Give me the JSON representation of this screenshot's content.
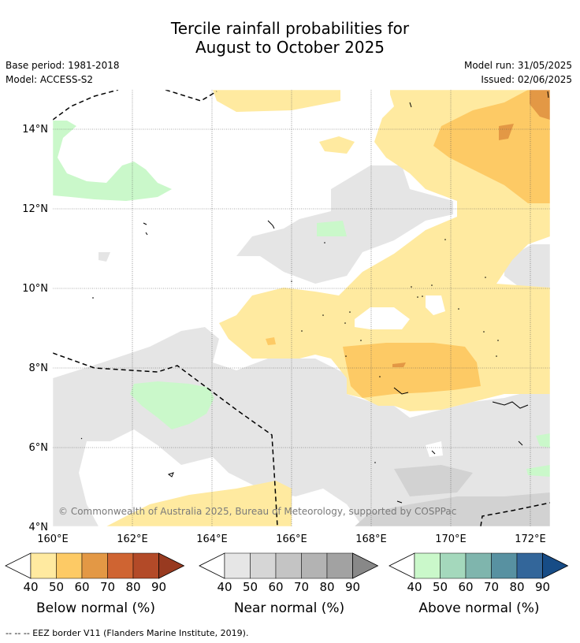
{
  "title_line1": "Tercile rainfall probabilities for",
  "title_line2": "August to October 2025",
  "base_period": "Base period: 1981-2018",
  "model": "Model: ACCESS-S2",
  "model_run": "Model run: 31/05/2025",
  "issued": "Issued: 02/06/2025",
  "credit": "© Commonwealth of Australia 2025, Bureau of Meteorology, supported by COSPPac",
  "footer": "--  --  -- EEZ border V11 (Flanders Marine Institute, 2019).",
  "map": {
    "lon_range": [
      160,
      172.5
    ],
    "lat_range": [
      4,
      15
    ],
    "lon_ticks": [
      "160°E",
      "162°E",
      "164°E",
      "166°E",
      "168°E",
      "170°E",
      "172°E"
    ],
    "lat_ticks": [
      "4°N",
      "6°N",
      "8°N",
      "10°N",
      "12°N",
      "14°N"
    ],
    "grid": true
  },
  "colorbars": [
    {
      "label": "Below normal (%)",
      "ticks": [
        "40",
        "50",
        "60",
        "70",
        "80",
        "90"
      ],
      "colors": [
        "#ffeaa0",
        "#fdca65",
        "#e39845",
        "#cf6432",
        "#b34a28",
        "#983a20"
      ]
    },
    {
      "label": "Near normal (%)",
      "ticks": [
        "40",
        "50",
        "60",
        "70",
        "80",
        "90"
      ],
      "colors": [
        "#e6e6e6",
        "#d6d6d6",
        "#c4c4c4",
        "#b3b3b3",
        "#a2a2a2",
        "#888888"
      ]
    },
    {
      "label": "Above normal (%)",
      "ticks": [
        "40",
        "50",
        "60",
        "70",
        "80",
        "90"
      ],
      "colors": [
        "#caf8ca",
        "#a4d8bc",
        "#7fb5ad",
        "#5891a1",
        "#33669a",
        "#174c86"
      ]
    }
  ]
}
